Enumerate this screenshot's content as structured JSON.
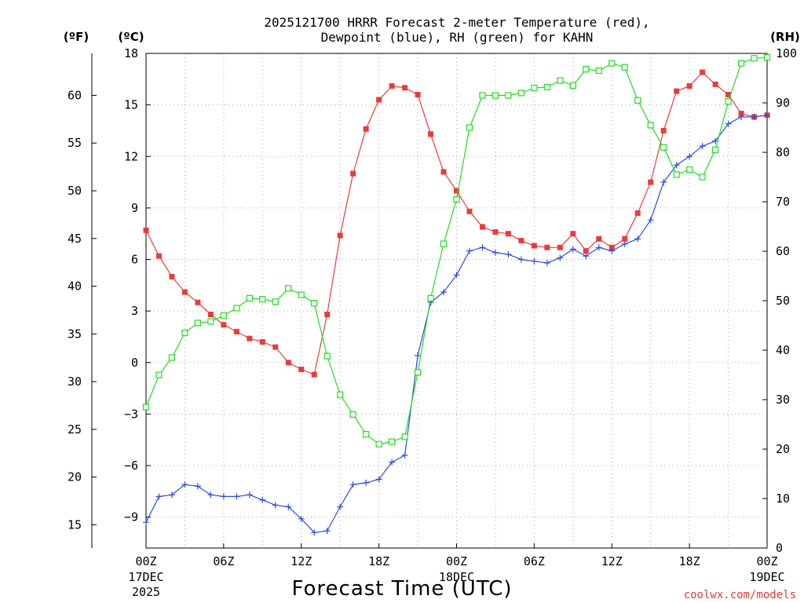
{
  "chart_data": {
    "type": "line",
    "title_line1": "2025121700 HRRR Forecast 2-meter Temperature (red),",
    "title_line2": "Dewpoint (blue), RH (green) for KAHN",
    "xlabel": "Forecast Time (UTC)",
    "credit": "coolwx.com/models",
    "unit_f": "(ºF)",
    "unit_c": "(ºC)",
    "unit_rh": "(RH)",
    "x_ticks": [
      {
        "hour": 0,
        "label": "00Z",
        "sub1": "17DEC",
        "sub2": "2025"
      },
      {
        "hour": 6,
        "label": "06Z",
        "sub1": "",
        "sub2": ""
      },
      {
        "hour": 12,
        "label": "12Z",
        "sub1": "",
        "sub2": ""
      },
      {
        "hour": 18,
        "label": "18Z",
        "sub1": "",
        "sub2": ""
      },
      {
        "hour": 24,
        "label": "00Z",
        "sub1": "18DEC",
        "sub2": ""
      },
      {
        "hour": 30,
        "label": "06Z",
        "sub1": "",
        "sub2": ""
      },
      {
        "hour": 36,
        "label": "12Z",
        "sub1": "",
        "sub2": ""
      },
      {
        "hour": 42,
        "label": "18Z",
        "sub1": "",
        "sub2": ""
      },
      {
        "hour": 48,
        "label": "00Z",
        "sub1": "19DEC",
        "sub2": ""
      }
    ],
    "c_ticks": [
      "18",
      "15",
      "12",
      "9",
      "6",
      "3",
      "0",
      "−3",
      "−6",
      "−9"
    ],
    "c_tick_values": [
      18,
      15,
      12,
      9,
      6,
      3,
      0,
      -3,
      -6,
      -9
    ],
    "c_range": [
      -10.8,
      18
    ],
    "f_ticks": [
      "60",
      "55",
      "50",
      "45",
      "40",
      "35",
      "30",
      "25",
      "20",
      "15"
    ],
    "f_tick_values": [
      60,
      55,
      50,
      45,
      40,
      35,
      30,
      25,
      20,
      15
    ],
    "rh_ticks": [
      "100",
      "90",
      "80",
      "70",
      "60",
      "50",
      "40",
      "30",
      "20",
      "10",
      "0"
    ],
    "rh_tick_values": [
      100,
      90,
      80,
      70,
      60,
      50,
      40,
      30,
      20,
      10,
      0
    ],
    "rh_range": [
      0,
      100
    ],
    "x_range": [
      0,
      48
    ],
    "grid": true,
    "series": [
      {
        "name": "Temperature",
        "unit": "C",
        "color": "#e83c3c",
        "marker": "filled-square",
        "values": [
          7.7,
          6.2,
          5.0,
          4.1,
          3.5,
          2.8,
          2.2,
          1.8,
          1.4,
          1.2,
          0.9,
          0.0,
          -0.4,
          -0.7,
          2.8,
          7.4,
          11.0,
          13.6,
          15.3,
          16.1,
          16.0,
          15.6,
          13.3,
          11.1,
          10.0,
          8.8,
          7.9,
          7.6,
          7.5,
          7.1,
          6.8,
          6.7,
          6.7,
          7.5,
          6.5,
          7.2,
          6.7,
          7.2,
          8.7,
          10.5,
          13.5,
          15.8,
          16.1,
          16.9,
          16.2,
          15.6,
          14.5,
          14.3,
          14.4
        ]
      },
      {
        "name": "Dewpoint",
        "unit": "C",
        "color": "#2f4bd6",
        "marker": "plus",
        "values": [
          -9.3,
          -7.8,
          -7.7,
          -7.1,
          -7.2,
          -7.7,
          -7.8,
          -7.8,
          -7.7,
          -8.0,
          -8.3,
          -8.4,
          -9.1,
          -9.9,
          -9.8,
          -8.4,
          -7.1,
          -7.0,
          -6.8,
          -5.8,
          -5.4,
          0.4,
          3.5,
          4.1,
          5.1,
          6.5,
          6.7,
          6.4,
          6.3,
          6.0,
          5.9,
          5.8,
          6.1,
          6.6,
          6.2,
          6.7,
          6.5,
          6.9,
          7.2,
          8.3,
          10.5,
          11.5,
          12.0,
          12.6,
          12.9,
          13.9,
          14.3,
          14.3,
          14.4
        ]
      },
      {
        "name": "RH",
        "unit": "%",
        "color": "#22dd22",
        "marker": "open-square",
        "values": [
          28.5,
          35.0,
          38.5,
          43.5,
          45.5,
          45.8,
          47.0,
          48.5,
          50.5,
          50.3,
          49.8,
          52.5,
          51.2,
          49.5,
          38.8,
          31.0,
          27.0,
          23.0,
          21.0,
          21.5,
          22.5,
          35.5,
          50.5,
          61.5,
          70.5,
          85.0,
          91.5,
          91.5,
          91.5,
          92.0,
          93.0,
          93.2,
          94.5,
          93.5,
          96.8,
          96.5,
          98.0,
          97.2,
          90.5,
          85.5,
          81.0,
          75.5,
          76.5,
          75.0,
          80.5,
          90.3,
          98.0,
          99.0,
          99.2
        ]
      }
    ]
  }
}
